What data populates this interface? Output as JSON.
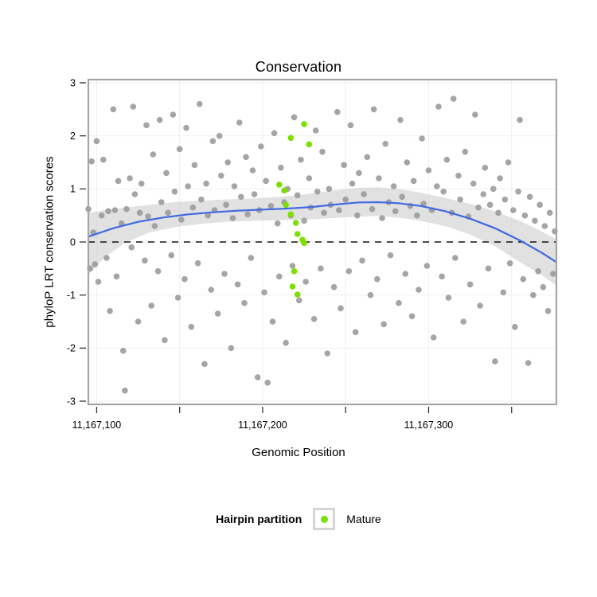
{
  "title": "Conservation",
  "legend": {
    "title": "Hairpin partition",
    "items": [
      {
        "label": "Mature",
        "color": "#7cdf00"
      }
    ]
  },
  "colors": {
    "gray_point": "#9b9b9b",
    "mature_point": "#7cdf00",
    "smooth_line": "#4169e1",
    "confidence_band": "#c9c9c9",
    "panel_border": "#a6a6a6",
    "gridline": "#efefef",
    "zero_line": "#111111"
  },
  "chart_data": {
    "type": "scatter",
    "title": "Conservation",
    "xlabel": "Genomic Position",
    "ylabel": "phyloP LRT conservation scores",
    "xlim": [
      11167095,
      11167377
    ],
    "ylim": [
      -3.06,
      3.06
    ],
    "grid": true,
    "legend_position": "bottom",
    "reference_line_y": 0,
    "x_ticks": [
      {
        "value": 11167100,
        "label": "11,167,100"
      },
      {
        "value": 11167150,
        "label": ""
      },
      {
        "value": 11167200,
        "label": "11,167,200"
      },
      {
        "value": 11167250,
        "label": ""
      },
      {
        "value": 11167300,
        "label": "11,167,300"
      },
      {
        "value": 11167350,
        "label": ""
      }
    ],
    "y_ticks": [
      {
        "value": -3,
        "label": "-3"
      },
      {
        "value": -2,
        "label": "-2"
      },
      {
        "value": -1,
        "label": "-1"
      },
      {
        "value": 0,
        "label": "0"
      },
      {
        "value": 1,
        "label": "1"
      },
      {
        "value": 2,
        "label": "2"
      },
      {
        "value": 3,
        "label": "3"
      }
    ],
    "series": [
      {
        "name": "",
        "color": "#9b9b9b",
        "points": [
          [
            11167095,
            0.62
          ],
          [
            11167096,
            -0.5
          ],
          [
            11167097,
            1.52
          ],
          [
            11167098,
            0.18
          ],
          [
            11167099,
            -0.42
          ],
          [
            11167100,
            1.9
          ],
          [
            11167101,
            -0.75
          ],
          [
            11167103,
            0.5
          ],
          [
            11167104,
            1.55
          ],
          [
            11167106,
            -0.3
          ],
          [
            11167107,
            0.58
          ],
          [
            11167108,
            -1.3
          ],
          [
            11167110,
            2.5
          ],
          [
            11167111,
            0.6
          ],
          [
            11167112,
            -0.65
          ],
          [
            11167113,
            1.15
          ],
          [
            11167115,
            0.35
          ],
          [
            11167116,
            -2.05
          ],
          [
            11167117,
            -2.8
          ],
          [
            11167118,
            0.62
          ],
          [
            11167120,
            1.2
          ],
          [
            11167121,
            -0.1
          ],
          [
            11167122,
            2.55
          ],
          [
            11167123,
            0.9
          ],
          [
            11167125,
            -1.5
          ],
          [
            11167126,
            0.55
          ],
          [
            11167127,
            1.1
          ],
          [
            11167129,
            -0.35
          ],
          [
            11167130,
            2.2
          ],
          [
            11167131,
            0.48
          ],
          [
            11167133,
            -1.2
          ],
          [
            11167134,
            1.65
          ],
          [
            11167135,
            0.3
          ],
          [
            11167137,
            -0.55
          ],
          [
            11167138,
            2.3
          ],
          [
            11167139,
            0.75
          ],
          [
            11167141,
            -1.85
          ],
          [
            11167142,
            1.3
          ],
          [
            11167143,
            0.55
          ],
          [
            11167145,
            -0.25
          ],
          [
            11167146,
            2.4
          ],
          [
            11167147,
            0.95
          ],
          [
            11167149,
            -1.05
          ],
          [
            11167150,
            1.75
          ],
          [
            11167151,
            0.42
          ],
          [
            11167153,
            -0.7
          ],
          [
            11167154,
            2.15
          ],
          [
            11167155,
            1.05
          ],
          [
            11167157,
            -1.6
          ],
          [
            11167158,
            0.65
          ],
          [
            11167159,
            1.45
          ],
          [
            11167161,
            -0.4
          ],
          [
            11167162,
            2.6
          ],
          [
            11167163,
            0.8
          ],
          [
            11167165,
            -2.3
          ],
          [
            11167166,
            1.1
          ],
          [
            11167167,
            0.5
          ],
          [
            11167169,
            -0.9
          ],
          [
            11167170,
            1.9
          ],
          [
            11167171,
            0.6
          ],
          [
            11167173,
            -1.35
          ],
          [
            11167174,
            2.0
          ],
          [
            11167175,
            1.25
          ],
          [
            11167177,
            -0.6
          ],
          [
            11167178,
            0.7
          ],
          [
            11167179,
            1.5
          ],
          [
            11167181,
            -2.0
          ],
          [
            11167182,
            0.45
          ],
          [
            11167183,
            1.05
          ],
          [
            11167185,
            -0.8
          ],
          [
            11167186,
            2.25
          ],
          [
            11167187,
            0.85
          ],
          [
            11167189,
            -1.15
          ],
          [
            11167190,
            1.6
          ],
          [
            11167191,
            0.52
          ],
          [
            11167193,
            -0.3
          ],
          [
            11167194,
            1.35
          ],
          [
            11167195,
            0.9
          ],
          [
            11167197,
            -2.55
          ],
          [
            11167198,
            0.6
          ],
          [
            11167199,
            1.8
          ],
          [
            11167201,
            -0.95
          ],
          [
            11167202,
            1.15
          ],
          [
            11167203,
            -2.65
          ],
          [
            11167205,
            0.68
          ],
          [
            11167206,
            -1.5
          ],
          [
            11167207,
            2.05
          ],
          [
            11167209,
            0.35
          ],
          [
            11167210,
            -0.65
          ],
          [
            11167211,
            1.4
          ],
          [
            11167213,
            0.75
          ],
          [
            11167214,
            -1.9
          ],
          [
            11167215,
            1.0
          ],
          [
            11167217,
            0.5
          ],
          [
            11167218,
            -0.45
          ],
          [
            11167219,
            2.35
          ],
          [
            11167221,
            0.88
          ],
          [
            11167222,
            -1.1
          ],
          [
            11167223,
            1.55
          ],
          [
            11167225,
            0.4
          ],
          [
            11167226,
            -0.75
          ],
          [
            11167228,
            1.2
          ],
          [
            11167229,
            0.65
          ],
          [
            11167231,
            -1.45
          ],
          [
            11167232,
            2.1
          ],
          [
            11167233,
            0.95
          ],
          [
            11167235,
            -0.5
          ],
          [
            11167236,
            1.7
          ],
          [
            11167237,
            0.55
          ],
          [
            11167239,
            -2.1
          ],
          [
            11167240,
            1.0
          ],
          [
            11167241,
            0.7
          ],
          [
            11167243,
            -0.85
          ],
          [
            11167245,
            2.45
          ],
          [
            11167246,
            0.6
          ],
          [
            11167247,
            -1.25
          ],
          [
            11167249,
            1.45
          ],
          [
            11167250,
            0.8
          ],
          [
            11167252,
            -0.55
          ],
          [
            11167253,
            2.2
          ],
          [
            11167254,
            1.1
          ],
          [
            11167256,
            -1.7
          ],
          [
            11167257,
            0.5
          ],
          [
            11167258,
            1.3
          ],
          [
            11167260,
            -0.35
          ],
          [
            11167261,
            0.9
          ],
          [
            11167263,
            1.6
          ],
          [
            11167265,
            -1.0
          ],
          [
            11167266,
            0.62
          ],
          [
            11167267,
            2.5
          ],
          [
            11167269,
            -0.7
          ],
          [
            11167270,
            1.2
          ],
          [
            11167272,
            0.45
          ],
          [
            11167273,
            -1.55
          ],
          [
            11167274,
            1.85
          ],
          [
            11167276,
            0.75
          ],
          [
            11167277,
            -0.25
          ],
          [
            11167279,
            1.05
          ],
          [
            11167280,
            0.58
          ],
          [
            11167282,
            -1.15
          ],
          [
            11167283,
            2.3
          ],
          [
            11167284,
            0.85
          ],
          [
            11167286,
            -0.6
          ],
          [
            11167287,
            1.5
          ],
          [
            11167289,
            0.68
          ],
          [
            11167290,
            -1.4
          ],
          [
            11167291,
            1.15
          ],
          [
            11167293,
            0.5
          ],
          [
            11167294,
            -0.9
          ],
          [
            11167296,
            1.95
          ],
          [
            11167297,
            0.72
          ],
          [
            11167299,
            -0.45
          ],
          [
            11167300,
            1.35
          ],
          [
            11167302,
            0.6
          ],
          [
            11167303,
            -1.8
          ],
          [
            11167305,
            1.05
          ],
          [
            11167306,
            2.55
          ],
          [
            11167308,
            -0.65
          ],
          [
            11167309,
            0.95
          ],
          [
            11167311,
            1.55
          ],
          [
            11167312,
            -1.05
          ],
          [
            11167314,
            0.55
          ],
          [
            11167315,
            2.7
          ],
          [
            11167316,
            -0.3
          ],
          [
            11167318,
            1.25
          ],
          [
            11167319,
            0.8
          ],
          [
            11167321,
            -1.5
          ],
          [
            11167322,
            1.7
          ],
          [
            11167324,
            0.48
          ],
          [
            11167325,
            -0.8
          ],
          [
            11167327,
            1.1
          ],
          [
            11167328,
            2.4
          ],
          [
            11167330,
            0.65
          ],
          [
            11167331,
            -1.2
          ],
          [
            11167333,
            0.9
          ],
          [
            11167334,
            1.4
          ],
          [
            11167336,
            -0.5
          ],
          [
            11167337,
            0.7
          ],
          [
            11167339,
            1.0
          ],
          [
            11167340,
            -2.25
          ],
          [
            11167342,
            0.55
          ],
          [
            11167343,
            1.2
          ],
          [
            11167345,
            -0.95
          ],
          [
            11167346,
            0.8
          ],
          [
            11167348,
            1.5
          ],
          [
            11167349,
            -0.4
          ],
          [
            11167351,
            0.6
          ],
          [
            11167352,
            -1.6
          ],
          [
            11167354,
            0.95
          ],
          [
            11167355,
            2.3
          ],
          [
            11167357,
            -0.7
          ],
          [
            11167358,
            0.5
          ],
          [
            11167360,
            -2.28
          ],
          [
            11167361,
            0.85
          ],
          [
            11167363,
            -1.0
          ],
          [
            11167364,
            0.4
          ],
          [
            11167366,
            -0.55
          ],
          [
            11167367,
            0.7
          ],
          [
            11167369,
            -0.85
          ],
          [
            11167370,
            0.3
          ],
          [
            11167372,
            -1.3
          ],
          [
            11167373,
            0.55
          ],
          [
            11167375,
            -0.6
          ],
          [
            11167376,
            0.2
          ]
        ]
      },
      {
        "name": "Mature",
        "color": "#7cdf00",
        "points": [
          [
            11167225,
            2.22
          ],
          [
            11167217,
            1.96
          ],
          [
            11167228,
            1.84
          ],
          [
            11167210,
            1.08
          ],
          [
            11167213,
            0.97
          ],
          [
            11167214,
            0.7
          ],
          [
            11167217,
            0.52
          ],
          [
            11167220,
            0.36
          ],
          [
            11167221,
            0.15
          ],
          [
            11167224,
            0.04
          ],
          [
            11167225,
            -0.02
          ],
          [
            11167219,
            -0.55
          ],
          [
            11167218,
            -0.84
          ],
          [
            11167221,
            -0.99
          ]
        ]
      }
    ],
    "smooth_line": {
      "color": "#4169e1",
      "points": [
        [
          11167095,
          0.1
        ],
        [
          11167110,
          0.26
        ],
        [
          11167125,
          0.38
        ],
        [
          11167140,
          0.46
        ],
        [
          11167155,
          0.52
        ],
        [
          11167170,
          0.56
        ],
        [
          11167185,
          0.59
        ],
        [
          11167200,
          0.61
        ],
        [
          11167215,
          0.63
        ],
        [
          11167230,
          0.66
        ],
        [
          11167245,
          0.71
        ],
        [
          11167258,
          0.745
        ],
        [
          11167270,
          0.75
        ],
        [
          11167282,
          0.73
        ],
        [
          11167295,
          0.68
        ],
        [
          11167310,
          0.58
        ],
        [
          11167325,
          0.44
        ],
        [
          11167340,
          0.26
        ],
        [
          11167355,
          0.03
        ],
        [
          11167368,
          -0.2
        ],
        [
          11167377,
          -0.38
        ]
      ]
    },
    "confidence_band": {
      "color": "#c9c9c9",
      "points": [
        {
          "x": 11167095,
          "lo": -0.62,
          "hi": 0.55
        },
        {
          "x": 11167105,
          "lo": -0.28,
          "hi": 0.6
        },
        {
          "x": 11167118,
          "lo": 0.0,
          "hi": 0.65
        },
        {
          "x": 11167132,
          "lo": 0.18,
          "hi": 0.7
        },
        {
          "x": 11167147,
          "lo": 0.28,
          "hi": 0.75
        },
        {
          "x": 11167162,
          "lo": 0.34,
          "hi": 0.78
        },
        {
          "x": 11167178,
          "lo": 0.38,
          "hi": 0.8
        },
        {
          "x": 11167194,
          "lo": 0.4,
          "hi": 0.82
        },
        {
          "x": 11167210,
          "lo": 0.41,
          "hi": 0.85
        },
        {
          "x": 11167226,
          "lo": 0.42,
          "hi": 0.9
        },
        {
          "x": 11167242,
          "lo": 0.45,
          "hi": 0.97
        },
        {
          "x": 11167258,
          "lo": 0.48,
          "hi": 1.02
        },
        {
          "x": 11167270,
          "lo": 0.49,
          "hi": 1.03
        },
        {
          "x": 11167282,
          "lo": 0.46,
          "hi": 1.0
        },
        {
          "x": 11167295,
          "lo": 0.4,
          "hi": 0.93
        },
        {
          "x": 11167310,
          "lo": 0.3,
          "hi": 0.83
        },
        {
          "x": 11167325,
          "lo": 0.14,
          "hi": 0.72
        },
        {
          "x": 11167340,
          "lo": -0.08,
          "hi": 0.58
        },
        {
          "x": 11167355,
          "lo": -0.38,
          "hi": 0.4
        },
        {
          "x": 11167368,
          "lo": -0.62,
          "hi": 0.2
        },
        {
          "x": 11167377,
          "lo": -0.82,
          "hi": 0.05
        }
      ]
    }
  }
}
